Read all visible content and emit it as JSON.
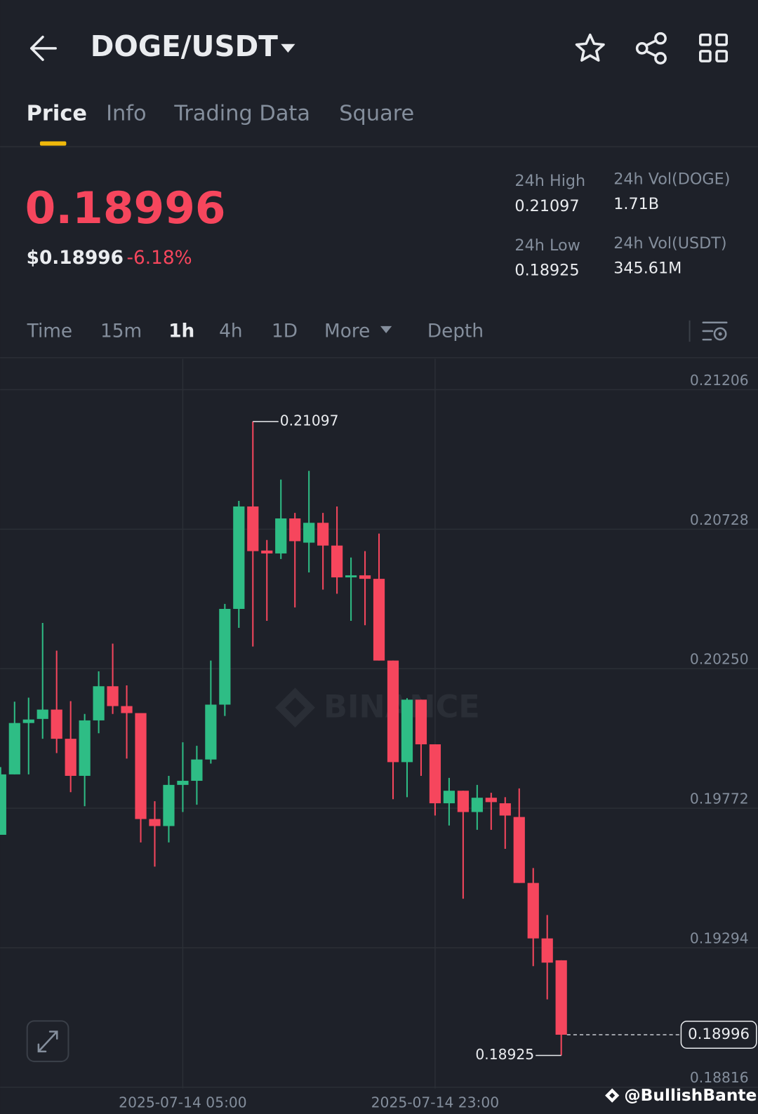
{
  "header": {
    "pair": "DOGE/USDT"
  },
  "tabs": [
    "Price",
    "Info",
    "Trading Data",
    "Square"
  ],
  "ticker": {
    "last": "0.18996",
    "last_usd": "$0.18996",
    "change": "-6.18%",
    "stats": [
      {
        "label": "24h High",
        "value": "0.21097"
      },
      {
        "label": "24h Vol(DOGE)",
        "value": "1.71B"
      },
      {
        "label": "24h Low",
        "value": "0.18925"
      },
      {
        "label": "24h Vol(USDT)",
        "value": "345.61M"
      }
    ]
  },
  "intervals": [
    "Time",
    "15m",
    "1h",
    "4h",
    "1D",
    "More",
    "Depth"
  ],
  "chart_data": {
    "type": "candlestick",
    "watermark": "BINANCE",
    "categories": [
      null,
      null,
      null,
      null,
      null,
      null,
      null,
      null,
      null,
      null,
      null,
      null,
      null,
      "2025-07-14 05:00",
      null,
      null,
      null,
      null,
      null,
      null,
      null,
      null,
      null,
      null,
      null,
      null,
      null,
      null,
      null,
      null,
      null,
      "2025-07-14 23:00",
      null,
      null,
      null,
      null,
      null,
      null,
      null,
      null,
      null
    ],
    "open": [
      0.19681,
      0.19888,
      0.20064,
      0.20078,
      0.2011,
      0.2001,
      0.19883,
      0.20073,
      0.2019,
      0.20122,
      0.20098,
      0.19735,
      0.19711,
      0.19852,
      0.19866,
      0.19939,
      0.20127,
      0.20455,
      0.20806,
      0.20655,
      0.20645,
      0.20765,
      0.20682,
      0.2075,
      0.20672,
      0.20563,
      0.2057,
      0.20558,
      0.20278,
      0.1993,
      0.20144,
      0.19991,
      0.19789,
      0.19832,
      0.19759,
      0.19808,
      0.19789,
      0.19742,
      0.19516,
      0.19326,
      0.19251
    ],
    "high": [
      0.19913,
      0.20137,
      0.20151,
      0.20407,
      0.20312,
      0.20139,
      0.20095,
      0.20241,
      0.20336,
      0.20193,
      0.20098,
      0.19796,
      0.19883,
      0.19998,
      0.19986,
      0.20278,
      0.20472,
      0.20825,
      0.21097,
      0.20691,
      0.20898,
      0.20784,
      0.20928,
      0.20784,
      0.20806,
      0.20631,
      0.20653,
      0.20713,
      0.20278,
      0.20149,
      0.20144,
      0.19991,
      0.19876,
      0.19832,
      0.19852,
      0.19825,
      0.1981,
      0.1984,
      0.19567,
      0.19406,
      0.19251
    ],
    "low": [
      0.19681,
      0.19888,
      0.19888,
      0.2001,
      0.19961,
      0.19827,
      0.19779,
      0.20029,
      0.20095,
      0.19942,
      0.19655,
      0.19572,
      0.19655,
      0.19759,
      0.19784,
      0.19925,
      0.20088,
      0.2039,
      0.20326,
      0.20414,
      0.20626,
      0.2046,
      0.2058,
      0.20521,
      0.20507,
      0.20414,
      0.20399,
      0.20278,
      0.19803,
      0.1981,
      0.19883,
      0.19747,
      0.19713,
      0.19462,
      0.19698,
      0.19698,
      0.19633,
      0.19516,
      0.19231,
      0.19117,
      0.18925
    ],
    "close": [
      0.19888,
      0.20064,
      0.20076,
      0.2011,
      0.2001,
      0.19883,
      0.20073,
      0.2019,
      0.20122,
      0.20098,
      0.19735,
      0.19711,
      0.19852,
      0.19866,
      0.19939,
      0.20127,
      0.20455,
      0.20806,
      0.20653,
      0.20645,
      0.20765,
      0.20687,
      0.2075,
      0.20672,
      0.20563,
      0.2057,
      0.20558,
      0.20278,
      0.1993,
      0.20144,
      0.19991,
      0.19789,
      0.19832,
      0.19759,
      0.19808,
      0.19793,
      0.19747,
      0.19516,
      0.19326,
      0.19243,
      0.18996
    ],
    "ylim": [
      0.18812,
      0.21312
    ],
    "yticks": [
      0.21206,
      0.20728,
      {
        "value": 0.2025,
        "label": "0.20250"
      },
      0.19772,
      0.19294,
      0.18816
    ],
    "grid": true,
    "up_color": "#2ebd85",
    "down_color": "#f6465d"
  },
  "footer": {
    "watermark": "@BullishBanter"
  }
}
